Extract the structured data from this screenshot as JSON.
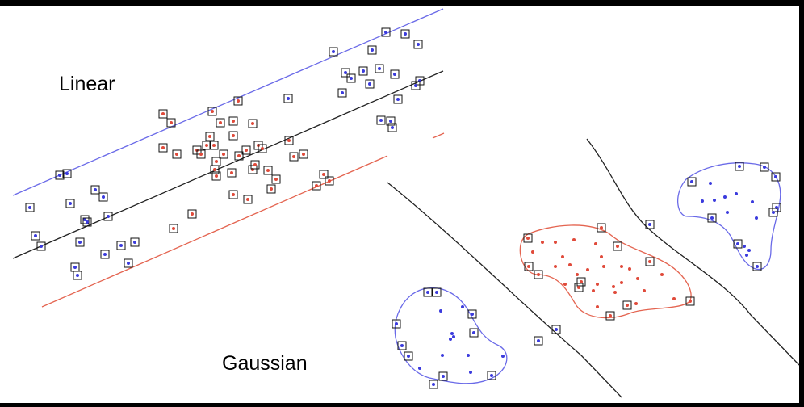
{
  "labels": {
    "linear": "Linear",
    "gaussian": "Gaussian"
  },
  "colors": {
    "frame": "#000000",
    "canvas": "#ffffff",
    "class_positive": "#3b3bdd",
    "class_negative": "#e04a3a",
    "boundary_positive": "#6a6ae8",
    "boundary_negative": "#e46450",
    "separator": "#222222",
    "support_box": "#111111"
  }
}
